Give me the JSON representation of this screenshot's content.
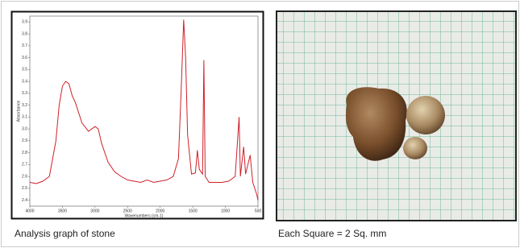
{
  "chart_data": {
    "type": "line",
    "x_label": "Wavenumbers (cm-1)",
    "y_label": "Absorbance",
    "color": "#d0202a",
    "xlim": [
      4000,
      500
    ],
    "ylim": [
      2.35,
      3.95
    ],
    "xticks": [
      4000,
      3500,
      3000,
      2500,
      2000,
      1500,
      1000,
      500
    ],
    "yticks": [
      2.4,
      2.5,
      2.6,
      2.7,
      2.8,
      2.9,
      {
        "value": 3,
        "label": "3.0"
      },
      3.1,
      3.2,
      3.3,
      3.4,
      3.5,
      3.6,
      3.7,
      3.8,
      3.9
    ],
    "x": [
      4000,
      3900,
      3800,
      3700,
      3600,
      3550,
      3500,
      3450,
      3400,
      3350,
      3300,
      3200,
      3100,
      3000,
      2950,
      2900,
      2800,
      2700,
      2600,
      2500,
      2400,
      2300,
      2200,
      2100,
      2000,
      1900,
      1800,
      1720,
      1680,
      1640,
      1610,
      1580,
      1520,
      1460,
      1430,
      1400,
      1350,
      1330,
      1310,
      1250,
      1150,
      1050,
      950,
      850,
      790,
      770,
      720,
      690,
      620,
      580,
      520,
      500
    ],
    "values": [
      2.55,
      2.54,
      2.56,
      2.6,
      2.9,
      3.2,
      3.36,
      3.4,
      3.38,
      3.28,
      3.22,
      3.05,
      2.98,
      3.02,
      3.0,
      2.88,
      2.72,
      2.64,
      2.6,
      2.57,
      2.56,
      2.55,
      2.57,
      2.55,
      2.56,
      2.57,
      2.6,
      2.75,
      3.3,
      3.92,
      3.6,
      2.95,
      2.62,
      2.63,
      2.82,
      2.66,
      2.62,
      3.58,
      2.6,
      2.55,
      2.55,
      2.55,
      2.56,
      2.6,
      3.1,
      2.6,
      2.85,
      2.62,
      2.78,
      2.55,
      2.45,
      2.4
    ]
  },
  "captions": [
    "Analysis graph of stone",
    "Each Square = 2 Sq. mm"
  ]
}
